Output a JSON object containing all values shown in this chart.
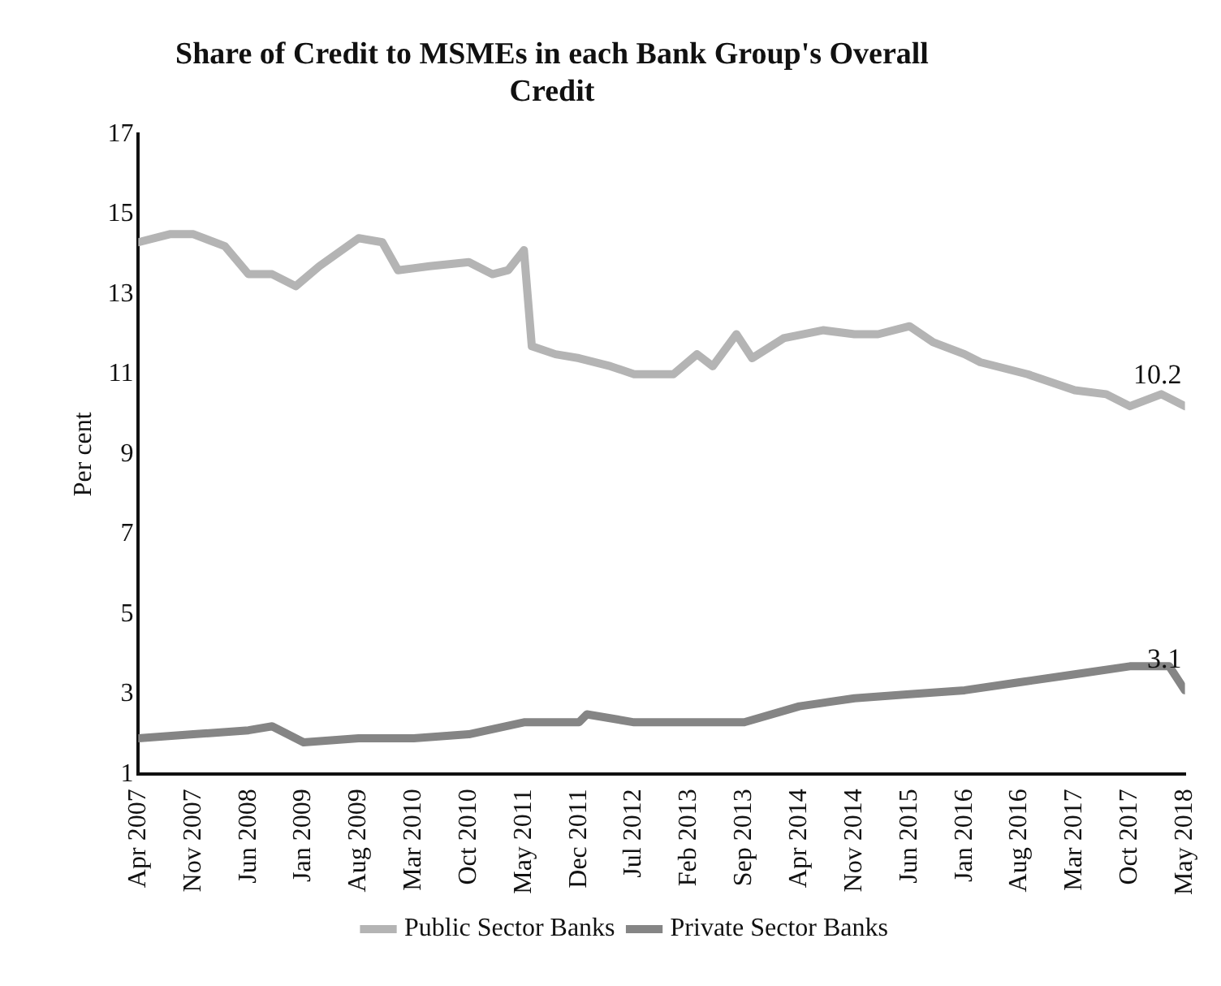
{
  "chart_data": {
    "type": "line",
    "title": "Share of Credit to MSMEs in each Bank Group's Overall Credit",
    "ylabel": "Per cent",
    "xlim": [
      "2007-04",
      "2018-05"
    ],
    "xticks": [
      {
        "value": "2007-04",
        "label": "Apr 2007"
      },
      {
        "value": "2007-11",
        "label": "Nov 2007"
      },
      {
        "value": "2008-06",
        "label": "Jun 2008"
      },
      {
        "value": "2009-01",
        "label": "Jan 2009"
      },
      {
        "value": "2009-08",
        "label": "Aug 2009"
      },
      {
        "value": "2010-03",
        "label": "Mar 2010"
      },
      {
        "value": "2010-10",
        "label": "Oct 2010"
      },
      {
        "value": "2011-05",
        "label": "May 2011"
      },
      {
        "value": "2011-12",
        "label": "Dec 2011"
      },
      {
        "value": "2012-07",
        "label": "Jul 2012"
      },
      {
        "value": "2013-02",
        "label": "Feb 2013"
      },
      {
        "value": "2013-09",
        "label": "Sep 2013"
      },
      {
        "value": "2014-04",
        "label": "Apr 2014"
      },
      {
        "value": "2014-11",
        "label": "Nov 2014"
      },
      {
        "value": "2015-06",
        "label": "Jun 2015"
      },
      {
        "value": "2016-01",
        "label": "Jan 2016"
      },
      {
        "value": "2016-08",
        "label": "Aug 2016"
      },
      {
        "value": "2017-03",
        "label": "Mar 2017"
      },
      {
        "value": "2017-10",
        "label": "Oct 2017"
      },
      {
        "value": "2018-05",
        "label": "May 2018"
      }
    ],
    "ylim": [
      1,
      17
    ],
    "yticks": [
      1,
      3,
      5,
      7,
      9,
      11,
      13,
      15,
      17
    ],
    "grid": false,
    "legend": "bottom",
    "marker": "none",
    "line_style": "solid",
    "series": [
      {
        "name": "Public Sector Banks",
        "color": "#b4b4b4",
        "x": [
          "2007-04",
          "2007-08",
          "2007-11",
          "2008-03",
          "2008-06",
          "2008-09",
          "2008-12",
          "2009-03",
          "2009-08",
          "2009-11",
          "2010-01",
          "2010-05",
          "2010-10",
          "2011-01",
          "2011-03",
          "2011-05",
          "2011-06",
          "2011-09",
          "2011-12",
          "2012-04",
          "2012-07",
          "2012-12",
          "2013-03",
          "2013-05",
          "2013-08",
          "2013-10",
          "2014-02",
          "2014-07",
          "2014-11",
          "2015-02",
          "2015-06",
          "2015-09",
          "2016-01",
          "2016-03",
          "2016-09",
          "2017-03",
          "2017-07",
          "2017-10",
          "2018-02",
          "2018-05"
        ],
        "values": [
          14.3,
          14.5,
          14.5,
          14.2,
          13.5,
          13.5,
          13.2,
          13.7,
          14.4,
          14.3,
          13.6,
          13.7,
          13.8,
          13.5,
          13.6,
          14.1,
          11.7,
          11.5,
          11.4,
          11.2,
          11.0,
          11.0,
          11.5,
          11.2,
          12.0,
          11.4,
          11.9,
          12.1,
          12.0,
          12.0,
          12.2,
          11.8,
          11.5,
          11.3,
          11.0,
          10.6,
          10.5,
          10.2,
          10.5,
          10.2
        ]
      },
      {
        "name": "Private Sector Banks",
        "color": "#858585",
        "x": [
          "2007-04",
          "2007-11",
          "2008-06",
          "2008-09",
          "2009-01",
          "2009-08",
          "2010-03",
          "2010-10",
          "2011-05",
          "2011-12",
          "2012-01",
          "2012-07",
          "2013-02",
          "2013-09",
          "2014-04",
          "2014-11",
          "2015-06",
          "2016-01",
          "2016-08",
          "2017-03",
          "2017-10",
          "2018-03",
          "2018-05"
        ],
        "values": [
          1.9,
          2.0,
          2.1,
          2.2,
          1.8,
          1.9,
          1.9,
          2.0,
          2.3,
          2.3,
          2.5,
          2.3,
          2.3,
          2.3,
          2.7,
          2.9,
          3.0,
          3.1,
          3.3,
          3.5,
          3.7,
          3.7,
          3.1
        ]
      }
    ],
    "annotations": [
      {
        "text": "10.2",
        "x": "2018-05",
        "y": 10.2
      },
      {
        "text": "3.1",
        "x": "2018-05",
        "y": 3.1
      }
    ]
  }
}
